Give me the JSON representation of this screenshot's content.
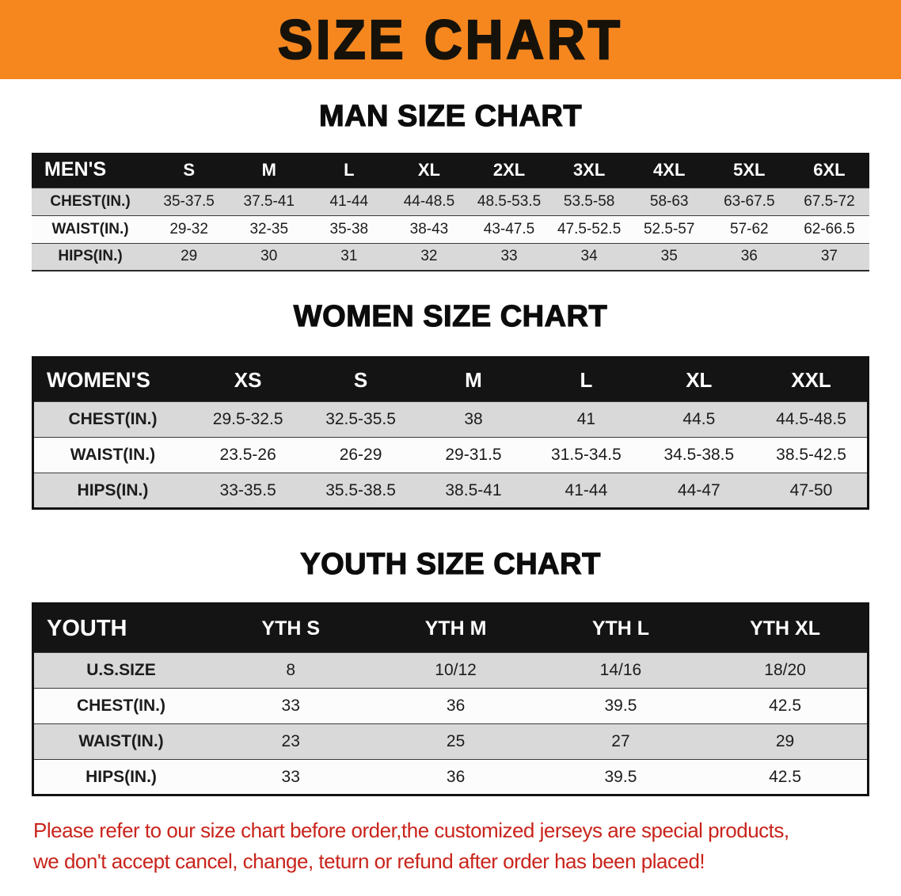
{
  "banner": {
    "title": "SIZE CHART"
  },
  "colors": {
    "banner_bg": "#f6871f",
    "header_bg": "#141414",
    "row_gray": "#d9d9d9",
    "disclaimer_red": "#c9241c"
  },
  "sections": [
    {
      "id": "men",
      "heading": "MAN SIZE CHART",
      "table": {
        "label_header": "MEN'S",
        "columns": [
          "S",
          "M",
          "L",
          "XL",
          "2XL",
          "3XL",
          "4XL",
          "5XL",
          "6XL"
        ],
        "rows": [
          {
            "label": "CHEST(IN.)",
            "values": [
              "35-37.5",
              "37.5-41",
              "41-44",
              "44-48.5",
              "48.5-53.5",
              "53.5-58",
              "58-63",
              "63-67.5",
              "67.5-72"
            ]
          },
          {
            "label": "WAIST(IN.)",
            "values": [
              "29-32",
              "32-35",
              "35-38",
              "38-43",
              "43-47.5",
              "47.5-52.5",
              "52.5-57",
              "57-62",
              "62-66.5"
            ]
          },
          {
            "label": "HIPS(IN.)",
            "values": [
              "29",
              "30",
              "31",
              "32",
              "33",
              "34",
              "35",
              "36",
              "37"
            ]
          }
        ]
      }
    },
    {
      "id": "women",
      "heading": "WOMEN SIZE CHART",
      "table": {
        "label_header": "WOMEN'S",
        "columns": [
          "XS",
          "S",
          "M",
          "L",
          "XL",
          "XXL"
        ],
        "rows": [
          {
            "label": "CHEST(IN.)",
            "values": [
              "29.5-32.5",
              "32.5-35.5",
              "38",
              "41",
              "44.5",
              "44.5-48.5"
            ]
          },
          {
            "label": "WAIST(IN.)",
            "values": [
              "23.5-26",
              "26-29",
              "29-31.5",
              "31.5-34.5",
              "34.5-38.5",
              "38.5-42.5"
            ]
          },
          {
            "label": "HIPS(IN.)",
            "values": [
              "33-35.5",
              "35.5-38.5",
              "38.5-41",
              "41-44",
              "44-47",
              "47-50"
            ]
          }
        ]
      }
    },
    {
      "id": "youth",
      "heading": "YOUTH SIZE CHART",
      "table": {
        "label_header": "YOUTH",
        "columns": [
          "YTH S",
          "YTH M",
          "YTH L",
          "YTH XL"
        ],
        "rows": [
          {
            "label": "U.S.SIZE",
            "values": [
              "8",
              "10/12",
              "14/16",
              "18/20"
            ]
          },
          {
            "label": "CHEST(IN.)",
            "values": [
              "33",
              "36",
              "39.5",
              "42.5"
            ]
          },
          {
            "label": "WAIST(IN.)",
            "values": [
              "23",
              "25",
              "27",
              "29"
            ]
          },
          {
            "label": "HIPS(IN.)",
            "values": [
              "33",
              "36",
              "39.5",
              "42.5"
            ]
          }
        ]
      }
    }
  ],
  "disclaimer": {
    "line1": "Please refer to our size chart before order,the customized jerseys are special products,",
    "line2": "we don't accept cancel, change, teturn or refund after order has been placed!"
  }
}
